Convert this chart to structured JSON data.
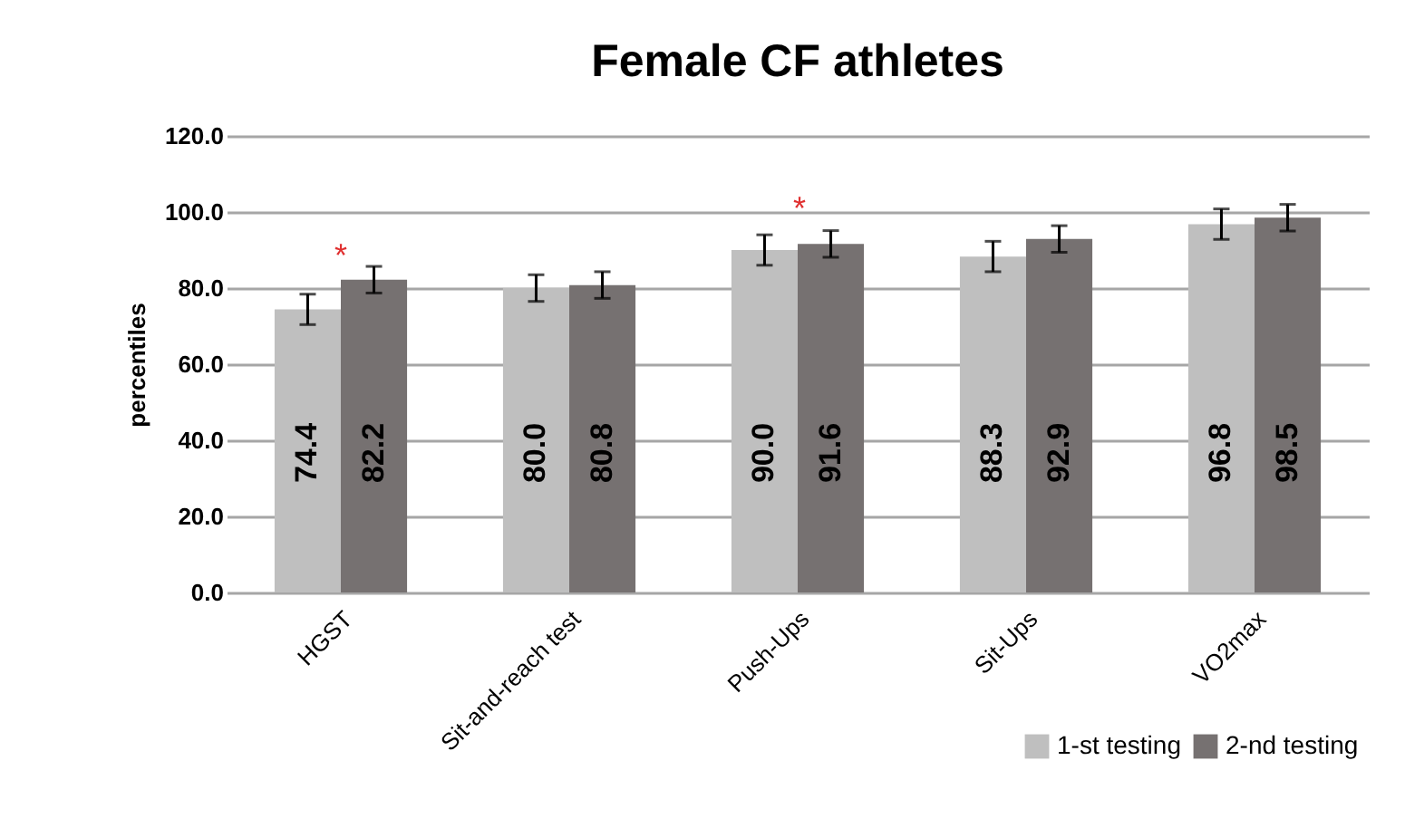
{
  "chart_data": {
    "type": "bar",
    "title": "Female CF athletes",
    "ylabel": "percentiles",
    "categories": [
      "HGST",
      "Sit-and-reach test",
      "Push-Ups",
      "Sit-Ups",
      "VO2max"
    ],
    "series": [
      {
        "name": "1-st testing",
        "color": "#bfbfbf",
        "values": [
          74.4,
          80.0,
          90.0,
          88.3,
          96.8
        ],
        "value_labels": [
          "74.4",
          "80.0",
          "90.0",
          "88.3",
          "96.8"
        ],
        "errors": [
          4,
          3.5,
          4,
          4,
          4
        ]
      },
      {
        "name": "2-nd testing",
        "color": "#767171",
        "values": [
          82.2,
          80.8,
          91.6,
          92.9,
          98.5
        ],
        "value_labels": [
          "82.2",
          "80.8",
          "91.6",
          "92.9",
          "98.5"
        ],
        "errors": [
          3.5,
          3.5,
          3.5,
          3.5,
          3.5
        ]
      }
    ],
    "ylim": [
      0,
      120
    ],
    "yticks": [
      {
        "value": 0,
        "label": "0.0"
      },
      {
        "value": 20,
        "label": "20.0"
      },
      {
        "value": 40,
        "label": "40.0"
      },
      {
        "value": 60,
        "label": "60.0"
      },
      {
        "value": 80,
        "label": "80.0"
      },
      {
        "value": 100,
        "label": "100.0"
      },
      {
        "value": 120,
        "label": "120.0"
      }
    ],
    "grid": "y",
    "legend": "bottom right",
    "annotations": [
      "*",
      "*"
    ]
  }
}
